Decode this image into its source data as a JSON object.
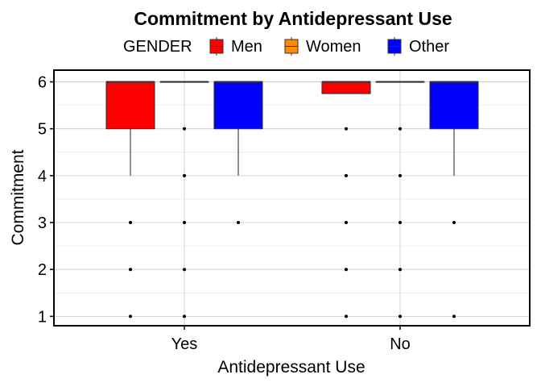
{
  "chart_data": {
    "type": "boxplot",
    "title": "Commitment by Antidepressant Use",
    "xlabel": "Antidepressant Use",
    "ylabel": "Commitment",
    "categories": [
      "Yes",
      "No"
    ],
    "y_ticks": [
      1,
      2,
      3,
      4,
      5,
      6
    ],
    "ylim": [
      0.8,
      6.25
    ],
    "grid": true,
    "legend": {
      "title": "GENDER",
      "placement": "top",
      "entries": [
        "Men",
        "Women",
        "Other"
      ]
    },
    "series": [
      {
        "name": "Men",
        "color": "#ff0000",
        "boxes": [
          {
            "category": "Yes",
            "q1": 5,
            "median": 6,
            "q3": 6,
            "whisker_low": 4,
            "whisker_high": 6,
            "outliers": [
              3,
              2,
              1
            ]
          },
          {
            "category": "No",
            "q1": 5.75,
            "median": 6,
            "q3": 6,
            "whisker_low": 5.75,
            "whisker_high": 6,
            "outliers": [
              5,
              4,
              3,
              2,
              1
            ]
          }
        ]
      },
      {
        "name": "Women",
        "color": "#ff8c00",
        "boxes": [
          {
            "category": "Yes",
            "q1": 6,
            "median": 6,
            "q3": 6,
            "whisker_low": 6,
            "whisker_high": 6,
            "outliers": [
              5,
              4,
              3,
              2,
              1
            ]
          },
          {
            "category": "No",
            "q1": 6,
            "median": 6,
            "q3": 6,
            "whisker_low": 6,
            "whisker_high": 6,
            "outliers": [
              5,
              4,
              3,
              2,
              1
            ]
          }
        ]
      },
      {
        "name": "Other",
        "color": "#0000ff",
        "boxes": [
          {
            "category": "Yes",
            "q1": 5,
            "median": 6,
            "q3": 6,
            "whisker_low": 4,
            "whisker_high": 6,
            "outliers": [
              3
            ]
          },
          {
            "category": "No",
            "q1": 5,
            "median": 6,
            "q3": 6,
            "whisker_low": 4,
            "whisker_high": 6,
            "outliers": [
              3,
              1
            ]
          }
        ]
      }
    ]
  }
}
